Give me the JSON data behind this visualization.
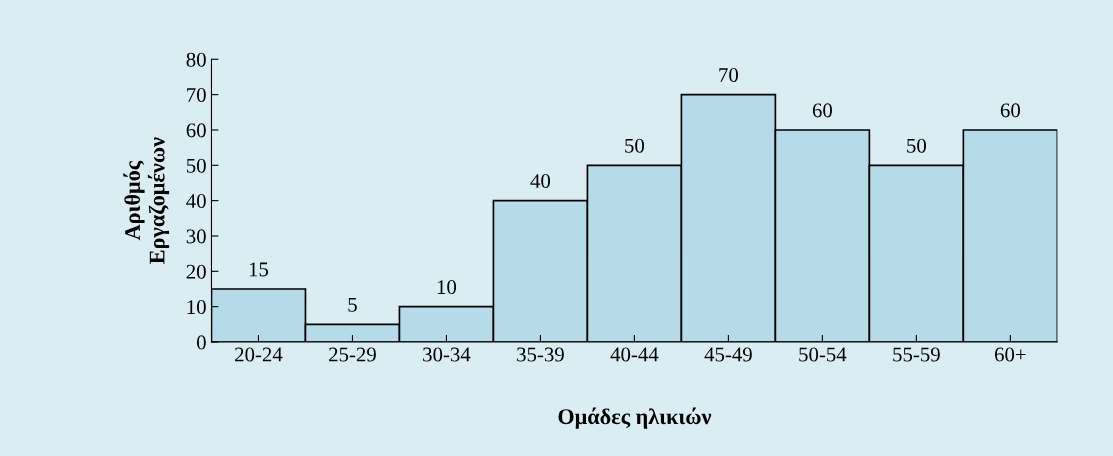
{
  "chart_data": {
    "type": "bar",
    "categories": [
      "20-24",
      "25-29",
      "30-34",
      "35-39",
      "40-44",
      "45-49",
      "50-54",
      "55-59",
      "60+"
    ],
    "values": [
      15,
      5,
      10,
      40,
      50,
      70,
      60,
      50,
      60
    ],
    "color": "#b5dbe8",
    "xlabel": "Ομάδες ηλικιών",
    "ylabel": "Αριθμός\nΕργαζομένων",
    "ylim": [
      0,
      80
    ],
    "yticks": [
      0,
      10,
      20,
      30,
      40,
      50,
      60,
      70,
      80
    ],
    "data_labels": true,
    "grid": false,
    "legend": false
  }
}
